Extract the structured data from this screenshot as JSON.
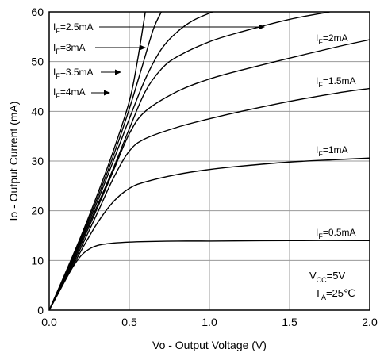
{
  "chart_data": {
    "type": "line",
    "xlabel": "Vo - Output Voltage (V)",
    "ylabel": "Io - Output Current (mA)",
    "xlim": [
      0.0,
      2.0
    ],
    "ylim": [
      0,
      60
    ],
    "x_ticks": [
      "0.0",
      "0.5",
      "1.0",
      "1.5",
      "2.0"
    ],
    "y_ticks": [
      "0",
      "10",
      "20",
      "30",
      "40",
      "50",
      "60"
    ],
    "grid": true,
    "line_color": "#000000",
    "grid_color": "#9a9a9a",
    "conditions": {
      "vcc": {
        "main": "V",
        "sub": "CC",
        "rest": "=5V"
      },
      "ta": {
        "main": "T",
        "sub": "A",
        "rest": "=25℃"
      }
    },
    "series": [
      {
        "label": {
          "main": "I",
          "sub": "F",
          "rest": "=0.5mA"
        },
        "x": [
          0,
          0.05,
          0.1,
          0.15,
          0.2,
          0.25,
          0.3,
          0.35,
          0.4,
          0.5,
          0.6,
          0.8,
          1.0,
          1.5,
          2.0
        ],
        "y": [
          0,
          3.0,
          6.0,
          8.8,
          11.0,
          12.3,
          13.0,
          13.3,
          13.5,
          13.7,
          13.8,
          13.9,
          13.9,
          14.0,
          14.0
        ]
      },
      {
        "label": {
          "main": "I",
          "sub": "F",
          "rest": "=1mA"
        },
        "x": [
          0,
          0.1,
          0.2,
          0.3,
          0.4,
          0.5,
          0.6,
          0.8,
          1.0,
          1.2,
          1.5,
          1.8,
          2.0
        ],
        "y": [
          0,
          6.0,
          12.0,
          17.5,
          21.8,
          24.5,
          25.8,
          27.3,
          28.3,
          29.0,
          29.8,
          30.3,
          30.6
        ]
      },
      {
        "label": {
          "main": "I",
          "sub": "F",
          "rest": "=1.5mA"
        },
        "x": [
          0,
          0.1,
          0.2,
          0.3,
          0.4,
          0.5,
          0.6,
          0.8,
          1.0,
          1.2,
          1.5,
          1.8,
          2.0
        ],
        "y": [
          0,
          6.3,
          12.7,
          19.5,
          26.5,
          32.0,
          34.5,
          36.8,
          38.5,
          40.0,
          42.0,
          43.7,
          44.6
        ]
      },
      {
        "label": {
          "main": "I",
          "sub": "F",
          "rest": "=2mA"
        },
        "x": [
          0,
          0.1,
          0.2,
          0.3,
          0.4,
          0.5,
          0.6,
          0.8,
          1.0,
          1.2,
          1.5,
          1.8,
          2.0
        ],
        "y": [
          0,
          6.5,
          13.3,
          20.5,
          28.0,
          35.5,
          40.0,
          44.0,
          46.5,
          48.3,
          50.7,
          53.0,
          54.4
        ]
      },
      {
        "label": {
          "main": "I",
          "sub": "F",
          "rest": "=2.5mA"
        },
        "x": [
          0,
          0.1,
          0.2,
          0.3,
          0.4,
          0.5,
          0.6,
          0.7,
          0.8,
          1.0,
          1.2,
          1.5,
          1.75
        ],
        "y": [
          0,
          6.8,
          13.8,
          21.0,
          28.5,
          36.5,
          44.0,
          48.5,
          51.0,
          54.0,
          56.0,
          58.5,
          60.0
        ]
      },
      {
        "label": {
          "main": "I",
          "sub": "F",
          "rest": "=3mA"
        },
        "x": [
          0,
          0.1,
          0.2,
          0.3,
          0.4,
          0.5,
          0.6,
          0.7,
          0.8,
          0.9,
          1.02
        ],
        "y": [
          0,
          7.0,
          14.2,
          21.8,
          30.0,
          38.5,
          46.5,
          52.5,
          56.0,
          58.3,
          60.0
        ]
      },
      {
        "label": {
          "main": "I",
          "sub": "F",
          "rest": "=3.5mA"
        },
        "x": [
          0,
          0.1,
          0.2,
          0.3,
          0.4,
          0.5,
          0.58,
          0.65,
          0.7
        ],
        "y": [
          0,
          7.2,
          14.6,
          22.5,
          31.0,
          40.5,
          49.0,
          56.5,
          60.0
        ]
      },
      {
        "label": {
          "main": "I",
          "sub": "F",
          "rest": "=4mA"
        },
        "x": [
          0,
          0.1,
          0.2,
          0.3,
          0.4,
          0.5,
          0.55,
          0.6
        ],
        "y": [
          0,
          7.4,
          15.0,
          23.2,
          32.0,
          42.0,
          50.0,
          60.0
        ]
      }
    ]
  }
}
